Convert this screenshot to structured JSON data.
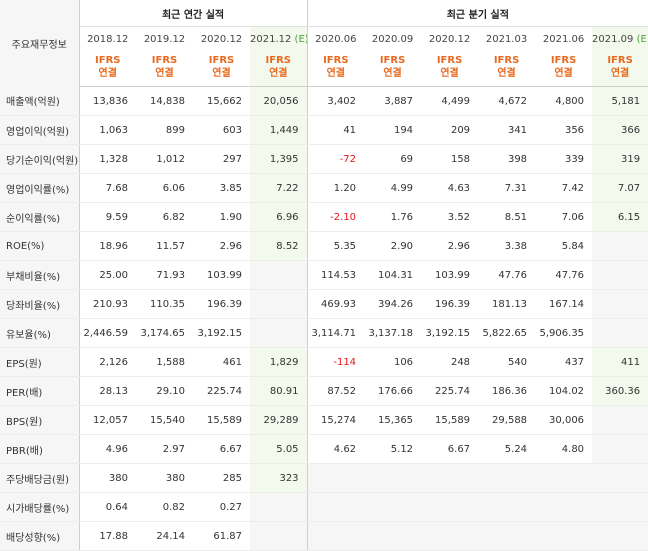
{
  "header": {
    "row_label": "주요재무정보",
    "annual_title": "최근 연간 실적",
    "quarterly_title": "최근 분기 실적",
    "standard_line1": "IFRS",
    "standard_line2": "연결"
  },
  "periods": [
    {
      "label": "2018.12",
      "est": "",
      "estimate": false
    },
    {
      "label": "2019.12",
      "est": "",
      "estimate": false
    },
    {
      "label": "2020.12",
      "est": "",
      "estimate": false
    },
    {
      "label": "2021.12",
      "est": "(E)",
      "estimate": true
    },
    {
      "label": "2020.06",
      "est": "",
      "estimate": false
    },
    {
      "label": "2020.09",
      "est": "",
      "estimate": false
    },
    {
      "label": "2020.12",
      "est": "",
      "estimate": false
    },
    {
      "label": "2021.03",
      "est": "",
      "estimate": false
    },
    {
      "label": "2021.06",
      "est": "",
      "estimate": false
    },
    {
      "label": "2021.09",
      "est": "(E)",
      "estimate": true
    }
  ],
  "rows": [
    {
      "label": "매출액(억원)",
      "values": [
        "13,836",
        "14,838",
        "15,662",
        "20,056",
        "3,402",
        "3,887",
        "4,499",
        "4,672",
        "4,800",
        "5,181"
      ]
    },
    {
      "label": "영업이익(억원)",
      "values": [
        "1,063",
        "899",
        "603",
        "1,449",
        "41",
        "194",
        "209",
        "341",
        "356",
        "366"
      ]
    },
    {
      "label": "당기순이익(억원)",
      "values": [
        "1,328",
        "1,012",
        "297",
        "1,395",
        "-72",
        "69",
        "158",
        "398",
        "339",
        "319"
      ]
    },
    {
      "label": "영업이익률(%)",
      "values": [
        "7.68",
        "6.06",
        "3.85",
        "7.22",
        "1.20",
        "4.99",
        "4.63",
        "7.31",
        "7.42",
        "7.07"
      ]
    },
    {
      "label": "순이익률(%)",
      "values": [
        "9.59",
        "6.82",
        "1.90",
        "6.96",
        "-2.10",
        "1.76",
        "3.52",
        "8.51",
        "7.06",
        "6.15"
      ]
    },
    {
      "label": "ROE(%)",
      "values": [
        "18.96",
        "11.57",
        "2.96",
        "8.52",
        "5.35",
        "2.90",
        "2.96",
        "3.38",
        "5.84",
        ""
      ]
    },
    {
      "label": "부채비율(%)",
      "values": [
        "25.00",
        "71.93",
        "103.99",
        "",
        "114.53",
        "104.31",
        "103.99",
        "47.76",
        "47.76",
        ""
      ]
    },
    {
      "label": "당좌비율(%)",
      "values": [
        "210.93",
        "110.35",
        "196.39",
        "",
        "469.93",
        "394.26",
        "196.39",
        "181.13",
        "167.14",
        ""
      ]
    },
    {
      "label": "유보율(%)",
      "values": [
        "2,446.59",
        "3,174.65",
        "3,192.15",
        "",
        "3,114.71",
        "3,137.18",
        "3,192.15",
        "5,822.65",
        "5,906.35",
        ""
      ]
    },
    {
      "label": "EPS(원)",
      "values": [
        "2,126",
        "1,588",
        "461",
        "1,829",
        "-114",
        "106",
        "248",
        "540",
        "437",
        "411"
      ]
    },
    {
      "label": "PER(배)",
      "values": [
        "28.13",
        "29.10",
        "225.74",
        "80.91",
        "87.52",
        "176.66",
        "225.74",
        "186.36",
        "104.02",
        "360.36"
      ]
    },
    {
      "label": "BPS(원)",
      "values": [
        "12,057",
        "15,540",
        "15,589",
        "29,289",
        "15,274",
        "15,365",
        "15,589",
        "29,588",
        "30,006",
        ""
      ]
    },
    {
      "label": "PBR(배)",
      "values": [
        "4.96",
        "2.97",
        "6.67",
        "5.05",
        "4.62",
        "5.12",
        "6.67",
        "5.24",
        "4.80",
        ""
      ]
    },
    {
      "label": "주당배당금(원)",
      "values": [
        "380",
        "380",
        "285",
        "323",
        "",
        "",
        "",
        "",
        "",
        ""
      ]
    },
    {
      "label": "시가배당률(%)",
      "values": [
        "0.64",
        "0.82",
        "0.27",
        "",
        "",
        "",
        "",
        "",
        "",
        ""
      ]
    },
    {
      "label": "배당성향(%)",
      "values": [
        "17.88",
        "24.14",
        "61.87",
        "",
        "",
        "",
        "",
        "",
        "",
        ""
      ]
    }
  ]
}
